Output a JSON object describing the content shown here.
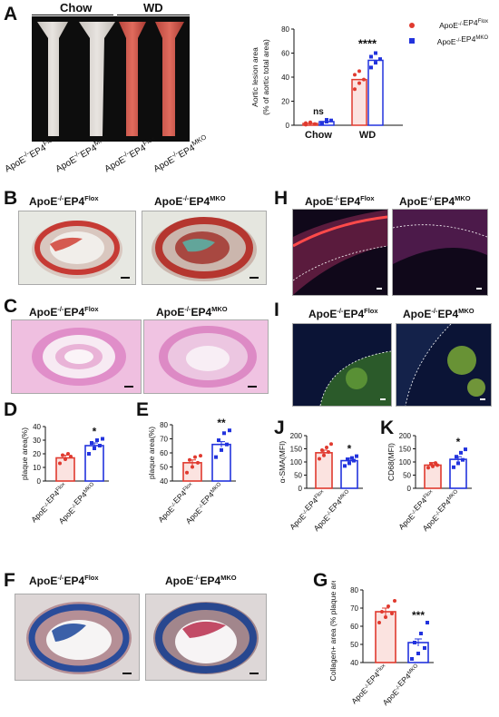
{
  "panels": {
    "A": "A",
    "B": "B",
    "C": "C",
    "D": "D",
    "E": "E",
    "F": "F",
    "G": "G",
    "H": "H",
    "I": "I",
    "J": "J",
    "K": "K"
  },
  "labels": {
    "flox_prefix": "ApoE",
    "flox_sup1": "-/-",
    "flox_mid": "EP4",
    "flox_sup2": "Flox",
    "mko_sup2": "MKO",
    "chow": "Chow",
    "wd": "WD"
  },
  "headers": {
    "flox": "ApoE-/-EP4Flox",
    "mko": "ApoE-/-EP4MKO"
  },
  "colors": {
    "flox": "#e03a2f",
    "mko": "#2233dd",
    "flox_fill": "#fbe3e0"
  },
  "chart_data": [
    {
      "id": "A",
      "type": "bar",
      "ylabel": "Aortic lesion area (% of aortic total area)",
      "categories": [
        "Chow",
        "WD"
      ],
      "ylim": [
        0,
        80
      ],
      "yticks": [
        0,
        20,
        40,
        60,
        80
      ],
      "series": [
        {
          "name": "ApoE-/-EP4Flox",
          "values": [
            1.5,
            38
          ],
          "points": [
            [
              0.5,
              2,
              1,
              1.8,
              2.5
            ],
            [
              30,
              35,
              38,
              42,
              45
            ]
          ]
        },
        {
          "name": "ApoE-/-EP4MKO",
          "values": [
            3,
            54
          ],
          "points": [
            [
              1.5,
              3,
              4,
              2,
              4.5
            ],
            [
              48,
              52,
              55,
              57,
              60
            ]
          ]
        }
      ],
      "annotations": [
        "ns",
        "****"
      ],
      "legend": "top-right"
    },
    {
      "id": "D",
      "type": "bar",
      "ylabel": "plaque area(%)",
      "categories": [
        "ApoE-/-EP4Flox",
        "ApoE-/-EP4MKO"
      ],
      "ylim": [
        0,
        40
      ],
      "yticks": [
        0,
        10,
        20,
        30,
        40
      ],
      "values": [
        17,
        26
      ],
      "points": [
        [
          13,
          16,
          18,
          19,
          20
        ],
        [
          20,
          24,
          26,
          28,
          30,
          31
        ]
      ],
      "annotation": "*"
    },
    {
      "id": "E",
      "type": "bar",
      "ylabel": "plaque area(%)",
      "categories": [
        "ApoE-/-EP4Flox",
        "ApoE-/-EP4MKO"
      ],
      "ylim": [
        40,
        80
      ],
      "yticks": [
        40,
        50,
        60,
        70,
        80
      ],
      "values": [
        53,
        66
      ],
      "points": [
        [
          46,
          50,
          53,
          55,
          57,
          58
        ],
        [
          57,
          62,
          66,
          69,
          74,
          76
        ]
      ],
      "annotation": "**"
    },
    {
      "id": "J",
      "type": "bar",
      "ylabel": "α-SMA(MFI)",
      "categories": [
        "ApoE-/-EP4Flox",
        "ApoE-/-EP4MKO"
      ],
      "ylim": [
        0,
        200
      ],
      "yticks": [
        0,
        50,
        100,
        150,
        200
      ],
      "values": [
        135,
        105
      ],
      "points": [
        [
          112,
          125,
          138,
          145,
          155,
          168
        ],
        [
          85,
          95,
          105,
          110,
          115,
          122
        ]
      ],
      "annotation": "*"
    },
    {
      "id": "K",
      "type": "bar",
      "ylabel": "CD68(MFI)",
      "categories": [
        "ApoE-/-EP4Flox",
        "ApoE-/-EP4MKO"
      ],
      "ylim": [
        0,
        200
      ],
      "yticks": [
        0,
        50,
        100,
        150,
        200
      ],
      "values": [
        88,
        110
      ],
      "points": [
        [
          78,
          83,
          88,
          92,
          96
        ],
        [
          80,
          95,
          108,
          120,
          135,
          148
        ]
      ],
      "annotation": "*"
    },
    {
      "id": "G",
      "type": "bar",
      "ylabel": "Collagen+ area (% plaque area)",
      "categories": [
        "ApoE-/-EP4Flox",
        "ApoE-/-EP4MKO"
      ],
      "ylim": [
        40,
        80
      ],
      "yticks": [
        40,
        50,
        60,
        70,
        80
      ],
      "values": [
        68,
        51
      ],
      "points": [
        [
          62,
          65,
          67,
          68,
          71,
          74
        ],
        [
          42,
          45,
          48,
          51,
          56,
          62
        ]
      ],
      "annotation": "***"
    }
  ]
}
